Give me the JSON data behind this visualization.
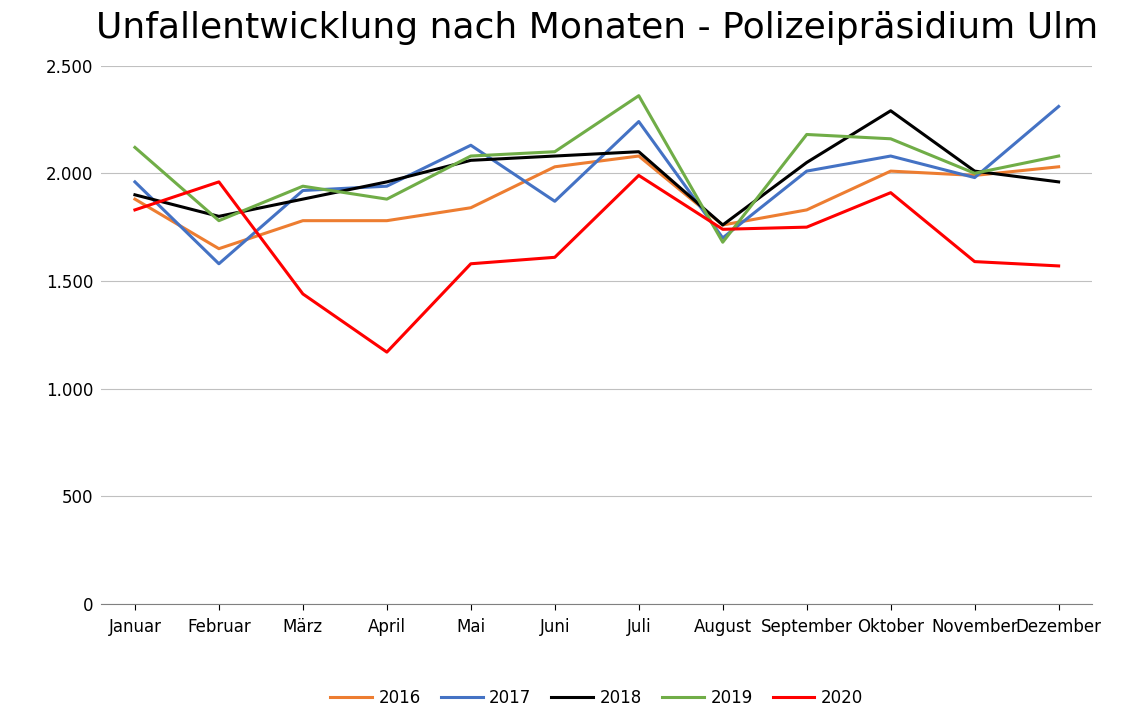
{
  "title": "Unfallentwicklung nach Monaten - Polizeipräsidium Ulm",
  "months": [
    "Januar",
    "Februar",
    "März",
    "April",
    "Mai",
    "Juni",
    "Juli",
    "August",
    "September",
    "Oktober",
    "November",
    "Dezember"
  ],
  "series": {
    "2016": [
      1880,
      1650,
      1780,
      1780,
      1840,
      2030,
      2080,
      1760,
      1830,
      2010,
      1990,
      2030
    ],
    "2017": [
      1960,
      1580,
      1920,
      1940,
      2130,
      1870,
      2240,
      1700,
      2010,
      2080,
      1980,
      2310
    ],
    "2018": [
      1900,
      1800,
      1880,
      1960,
      2060,
      2080,
      2100,
      1760,
      2050,
      2290,
      2010,
      1960
    ],
    "2019": [
      2120,
      1780,
      1940,
      1880,
      2080,
      2100,
      2360,
      1680,
      2180,
      2160,
      2000,
      2080
    ],
    "2020": [
      1830,
      1960,
      1440,
      1170,
      1580,
      1610,
      1990,
      1740,
      1750,
      1910,
      1590,
      1570
    ]
  },
  "colors": {
    "2016": "#ED7D31",
    "2017": "#4472C4",
    "2018": "#000000",
    "2019": "#70AD47",
    "2020": "#FF0000"
  },
  "ylim": [
    0,
    2500
  ],
  "yticks": [
    0,
    500,
    1000,
    1500,
    2000,
    2500
  ],
  "ytick_labels": [
    "0",
    "500",
    "1.000",
    "1.500",
    "2.000",
    "2.500"
  ],
  "background_color": "#FFFFFF",
  "title_fontsize": 26,
  "legend_fontsize": 12,
  "tick_fontsize": 12,
  "linewidth": 2.2
}
